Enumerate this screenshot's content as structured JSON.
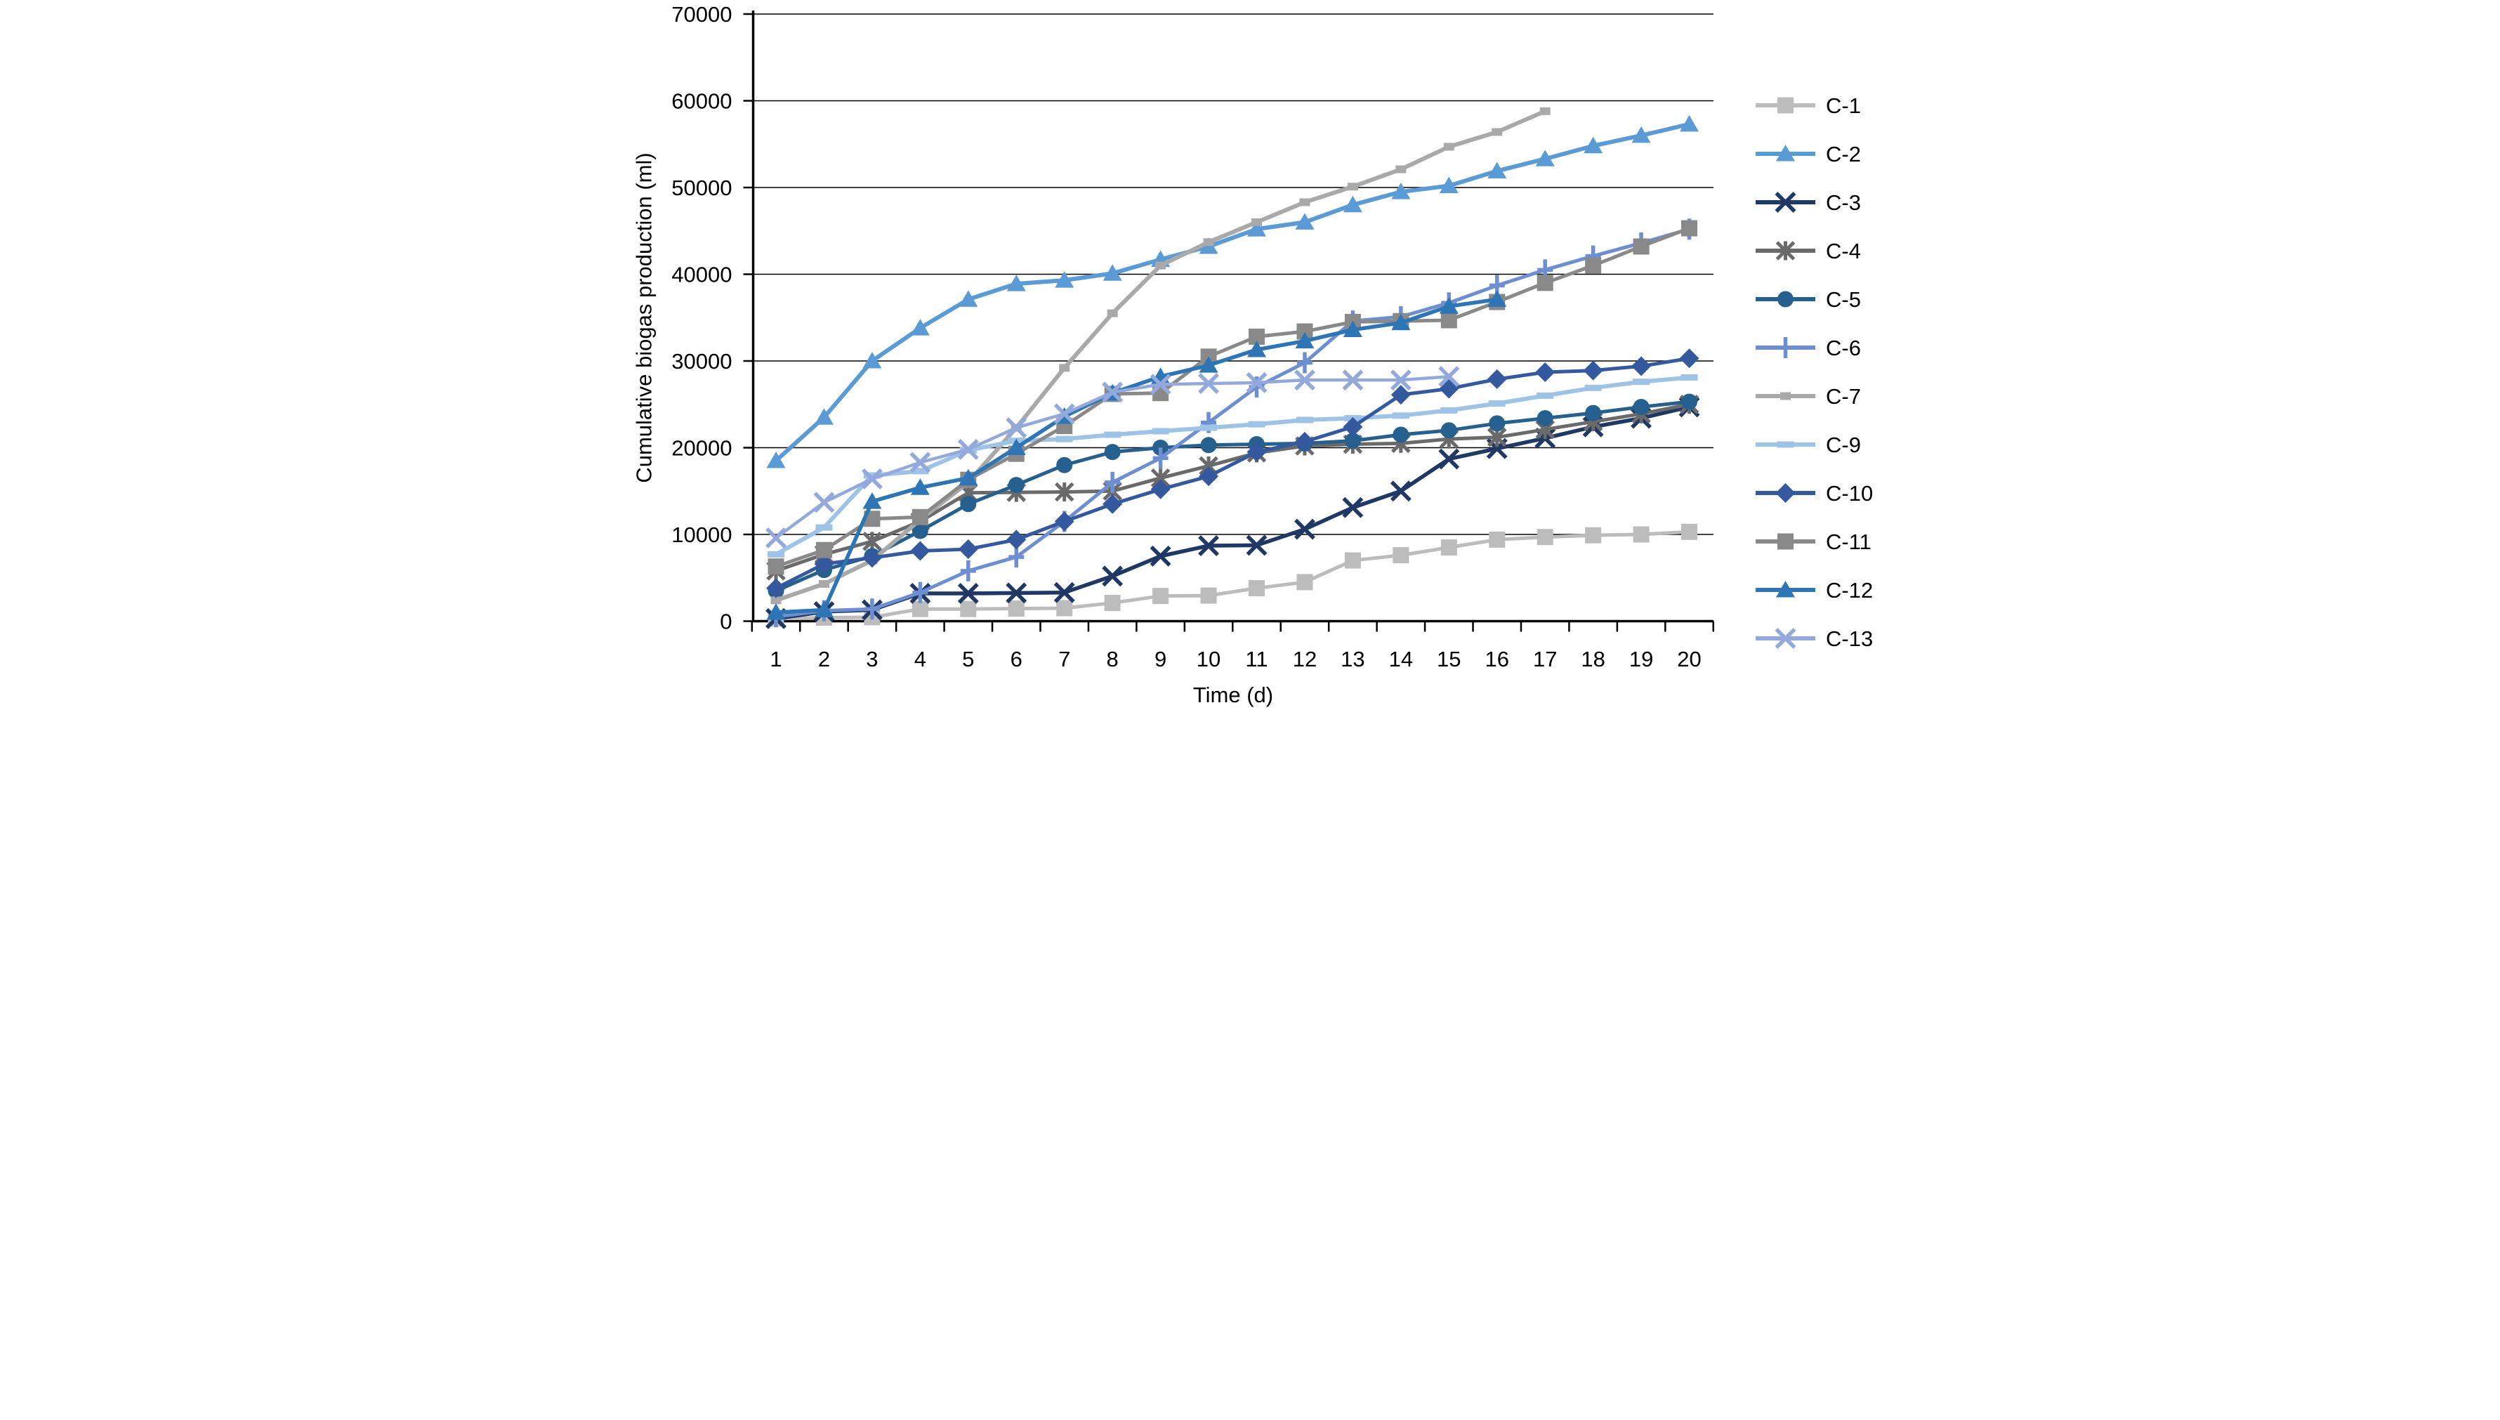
{
  "chart_data": {
    "type": "line",
    "title": "",
    "xlabel": "Time (d)",
    "ylabel": "Cumulative biogas production (ml)",
    "x_categories": [
      "1",
      "2",
      "3",
      "4",
      "5",
      "6",
      "7",
      "8",
      "9",
      "10",
      "11",
      "12",
      "13",
      "14",
      "15",
      "16",
      "17",
      "18",
      "19",
      "20"
    ],
    "x_range_days": [
      1,
      20
    ],
    "ylim": [
      0,
      70000
    ],
    "y_ticks": [
      0,
      10000,
      20000,
      30000,
      40000,
      50000,
      60000,
      70000
    ],
    "y_tick_labels": [
      "0",
      "10000",
      "20000",
      "30000",
      "40000",
      "50000",
      "60000",
      "70000"
    ],
    "grid": "horizontal",
    "legend_position": "right",
    "axis_color": "#000000",
    "gridline_color": "#000000",
    "series": [
      {
        "name": "C-1",
        "color": "#bcbcbc",
        "marker": "square",
        "line_width": 10,
        "start_day": 1,
        "values": [
          300,
          400,
          450,
          1400,
          1400,
          1450,
          1500,
          2100,
          2900,
          2950,
          3800,
          4500,
          7000,
          7600,
          8500,
          9400,
          9700,
          9900,
          10000,
          10300
        ]
      },
      {
        "name": "C-2",
        "color": "#5b9bd5",
        "marker": "triangle",
        "line_width": 12,
        "start_day": 1,
        "values": [
          18500,
          23500,
          30000,
          33800,
          37100,
          38900,
          39300,
          40100,
          41700,
          43200,
          45200,
          46000,
          48000,
          49500,
          50200,
          51900,
          53300,
          54800,
          56000,
          57300
        ]
      },
      {
        "name": "C-3",
        "color": "#1f3864",
        "marker": "x",
        "line_width": 11,
        "start_day": 1,
        "values": [
          300,
          1100,
          1300,
          3200,
          3200,
          3250,
          3300,
          5200,
          7500,
          8700,
          8750,
          10600,
          13100,
          15000,
          18700,
          19900,
          21100,
          22400,
          23400,
          24700
        ]
      },
      {
        "name": "C-4",
        "color": "#6a6a6a",
        "marker": "asterisk",
        "line_width": 10,
        "start_day": 1,
        "values": [
          5800,
          7700,
          9200,
          11500,
          14800,
          14850,
          14900,
          15000,
          16500,
          17900,
          19400,
          20200,
          20400,
          20500,
          21000,
          21200,
          22100,
          23000,
          23900,
          25000
        ]
      },
      {
        "name": "C-5",
        "color": "#26608e",
        "marker": "circle",
        "line_width": 10,
        "start_day": 1,
        "values": [
          3500,
          5900,
          7500,
          10400,
          13500,
          15700,
          18000,
          19500,
          20000,
          20300,
          20400,
          20500,
          20800,
          21500,
          22000,
          22800,
          23400,
          24000,
          24700,
          25300
        ]
      },
      {
        "name": "C-6",
        "color": "#6d8fd1",
        "marker": "plus",
        "line_width": 10,
        "start_day": 1,
        "values": [
          500,
          1200,
          1400,
          3300,
          5800,
          7400,
          11500,
          16000,
          18800,
          22900,
          27000,
          29800,
          34600,
          35100,
          36700,
          38700,
          40500,
          42100,
          43600,
          45200
        ]
      },
      {
        "name": "C-7",
        "color": "#a9a9a9",
        "marker": "dash-square",
        "line_width": 12,
        "start_day": 1,
        "values": [
          2400,
          4300,
          7000,
          11700,
          16000,
          22300,
          29200,
          35500,
          41000,
          43700,
          46000,
          48300,
          50100,
          52100,
          54700,
          56400,
          58800
        ]
      },
      {
        "name": "C-9",
        "color": "#9dc3e6",
        "marker": "dash",
        "line_width": 12,
        "start_day": 1,
        "values": [
          7700,
          10800,
          16800,
          17300,
          19700,
          20800,
          21000,
          21500,
          21900,
          22300,
          22700,
          23200,
          23400,
          23700,
          24300,
          25100,
          26000,
          26900,
          27600,
          28100
        ]
      },
      {
        "name": "C-10",
        "color": "#35599f",
        "marker": "diamond",
        "line_width": 10,
        "start_day": 1,
        "values": [
          3800,
          6600,
          7300,
          8100,
          8300,
          9400,
          11500,
          13500,
          15200,
          16700,
          19500,
          20700,
          22400,
          26100,
          26800,
          27900,
          28700,
          28900,
          29400,
          30300
        ]
      },
      {
        "name": "C-11",
        "color": "#898989",
        "marker": "square",
        "line_width": 10,
        "start_day": 1,
        "values": [
          6300,
          8200,
          11800,
          12000,
          16300,
          19300,
          22500,
          26200,
          26300,
          30500,
          32800,
          33400,
          34500,
          34600,
          34700,
          36800,
          39000,
          41000,
          43200,
          45300
        ]
      },
      {
        "name": "C-12",
        "color": "#2e75b6",
        "marker": "triangle",
        "line_width": 11,
        "start_day": 1,
        "values": [
          1000,
          1300,
          13800,
          15400,
          16500,
          20000,
          23600,
          26300,
          28200,
          29500,
          31300,
          32300,
          33600,
          34400,
          36300,
          37100
        ]
      },
      {
        "name": "C-13",
        "color": "#93a9dc",
        "marker": "x",
        "line_width": 9,
        "start_day": 1,
        "values": [
          9600,
          13700,
          16400,
          18300,
          19800,
          22300,
          23900,
          26400,
          27300,
          27400,
          27500,
          27800,
          27800,
          27800,
          28200
        ]
      }
    ]
  }
}
